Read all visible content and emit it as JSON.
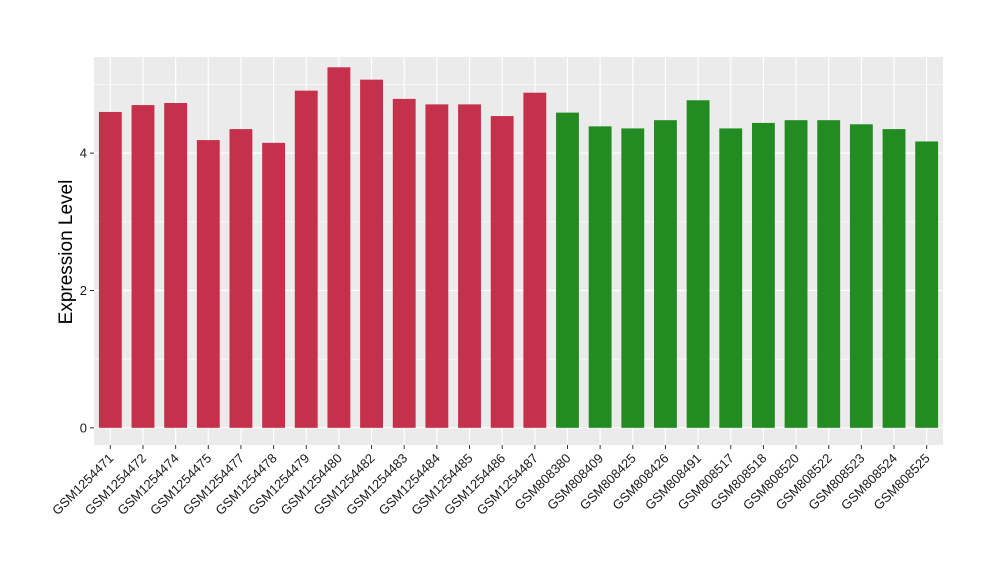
{
  "chart_data": {
    "type": "bar",
    "title": "",
    "xlabel": "",
    "ylabel": "Expression Level",
    "ylim": [
      -0.25,
      5.4
    ],
    "yticks": [
      0,
      2,
      4
    ],
    "grid": true,
    "legend": "none",
    "categories": [
      "GSM1254471",
      "GSM1254472",
      "GSM1254474",
      "GSM1254475",
      "GSM1254477",
      "GSM1254478",
      "GSM1254479",
      "GSM1254480",
      "GSM1254482",
      "GSM1254483",
      "GSM1254484",
      "GSM1254485",
      "GSM1254486",
      "GSM1254487",
      "GSM808380",
      "GSM808409",
      "GSM808425",
      "GSM808426",
      "GSM808491",
      "GSM808517",
      "GSM808518",
      "GSM808520",
      "GSM808522",
      "GSM808523",
      "GSM808524",
      "GSM808525"
    ],
    "values": [
      4.6,
      4.7,
      4.73,
      4.19,
      4.35,
      4.15,
      4.91,
      5.25,
      5.07,
      4.79,
      4.71,
      4.71,
      4.54,
      4.88,
      4.59,
      4.39,
      4.36,
      4.48,
      4.77,
      4.36,
      4.44,
      4.48,
      4.48,
      4.42,
      4.35,
      4.17
    ],
    "bar_colors": [
      "#c5304a",
      "#c5304a",
      "#c5304a",
      "#c5304a",
      "#c5304a",
      "#c5304a",
      "#c5304a",
      "#c5304a",
      "#c5304a",
      "#c5304a",
      "#c5304a",
      "#c5304a",
      "#c5304a",
      "#c5304a",
      "#228b22",
      "#228b22",
      "#228b22",
      "#228b22",
      "#228b22",
      "#228b22",
      "#228b22",
      "#228b22",
      "#228b22",
      "#228b22",
      "#228b22",
      "#228b22"
    ],
    "panel_background": "#ebebeb",
    "grid_color": "#ffffff"
  }
}
